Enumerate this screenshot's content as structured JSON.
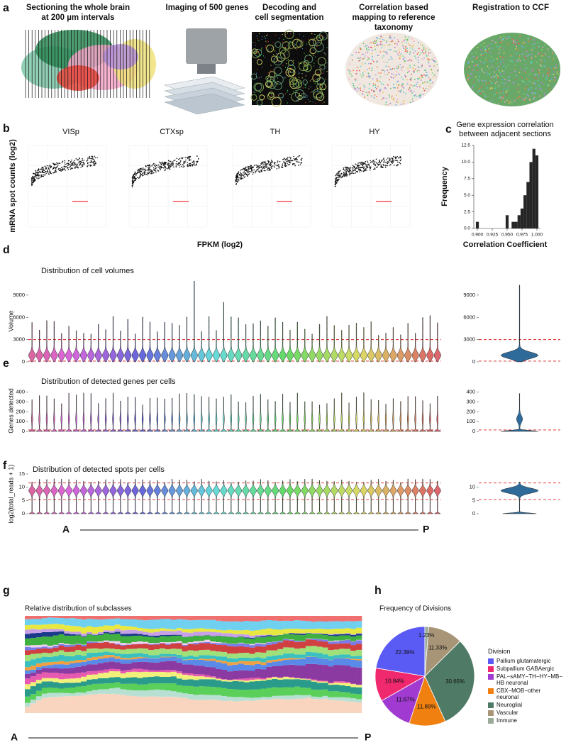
{
  "figure": {
    "panel_labels": [
      "a",
      "b",
      "c",
      "d",
      "e",
      "f",
      "g",
      "h"
    ],
    "steps": [
      [
        "Sectioning the whole brain",
        "at 200 µm intervals"
      ],
      [
        "Imaging of 500 genes"
      ],
      [
        "Decoding and",
        "cell segmentation"
      ],
      [
        "Correlation based",
        "mapping to reference",
        "taxonomy"
      ],
      [
        "Registration to CCF"
      ]
    ],
    "scatter": {
      "titles": [
        "VISp",
        "CTXsp",
        "TH",
        "HY"
      ],
      "ylabel": "mRNA spot counts (log2)",
      "xlabel": "FPKM (log2)"
    },
    "violins": [
      {
        "title": "Distribution of cell volumes",
        "ylabel": "Volume",
        "ylim": [
          0,
          11000
        ],
        "yticks": [
          0,
          3000,
          6000,
          9000
        ],
        "thresholds": [
          100,
          3000
        ]
      },
      {
        "title": "Distribution of detected genes per cells",
        "ylabel": "Genes detected",
        "ylim": [
          0,
          420
        ],
        "yticks": [
          0,
          100,
          200,
          300,
          400
        ],
        "thresholds": [
          15
        ]
      },
      {
        "title": "Distribution of detected spots per cells",
        "ylabel": "log2(total_reads + 1)",
        "ylim": [
          0,
          15
        ],
        "yticks": [
          0,
          5,
          10,
          15
        ],
        "side_yticks": [
          0,
          5,
          10
        ],
        "thresholds": [
          5.3,
          11.6
        ]
      }
    ],
    "subclass_title": "Relative distribution of subclasses",
    "axis_ends": [
      "A",
      "P"
    ]
  },
  "chart_data": [
    {
      "type": "histogram",
      "title": [
        "Gene expression correlation",
        "between adjacent sections"
      ],
      "xlabel": "Correlation Coefficient",
      "ylabel": "Frequency",
      "bins": [
        0.8975,
        0.9025,
        0.9075,
        0.9125,
        0.9175,
        0.9225,
        0.9275,
        0.9325,
        0.9375,
        0.9425,
        0.9475,
        0.9525,
        0.9575,
        0.9625,
        0.9675,
        0.9725,
        0.9775,
        0.9825,
        0.9875,
        0.9925,
        0.9975,
        1.0025
      ],
      "counts": [
        1,
        0,
        0,
        0,
        0,
        0,
        0,
        0,
        0,
        0,
        2,
        0,
        1,
        1,
        2,
        3,
        5,
        7,
        10,
        12,
        11
      ],
      "color": "#262626",
      "xlim": [
        0.894,
        1.006
      ],
      "xticks": [
        {
          "value": 0.9,
          "label": "0.900"
        },
        {
          "value": 0.925,
          "label": "0.925"
        },
        {
          "value": 0.95,
          "label": "0.950"
        },
        {
          "value": 0.975,
          "label": "0.975"
        },
        {
          "value": 1,
          "label": "1.000"
        }
      ],
      "ylim": [
        0,
        12.5
      ],
      "yticks": [
        {
          "value": 0,
          "label": "0.0"
        },
        {
          "value": 2.5,
          "label": "2.5"
        },
        {
          "value": 5,
          "label": "5.0"
        },
        {
          "value": 7.5,
          "label": "7.5"
        },
        {
          "value": 10,
          "label": "10.0"
        },
        12.5
      ]
    },
    {
      "type": "pie",
      "title": "Frequency of Divisions",
      "legend_title": "Division",
      "categories": [
        "Pallium glutamatergic",
        "Subpallium GABAergic",
        "PAL−sAMY−TH−HY−MB−HB neuronal",
        "CBX−MOB−other neuronal",
        "Neuroglial",
        "Vascular",
        "Immune"
      ],
      "values": [
        22.39,
        10.84,
        11.67,
        11.89,
        30.65,
        11.33,
        1.23
      ],
      "value_labels": [
        "22.39%",
        "10.84%",
        "11.67%",
        "11.89%",
        "30.65%",
        "11.33%",
        "1.23%"
      ],
      "colors": [
        "#5a5af5",
        "#f0286e",
        "#a03ad0",
        "#f08010",
        "#4f7a65",
        "#a89578",
        "#9aab97"
      ]
    }
  ]
}
